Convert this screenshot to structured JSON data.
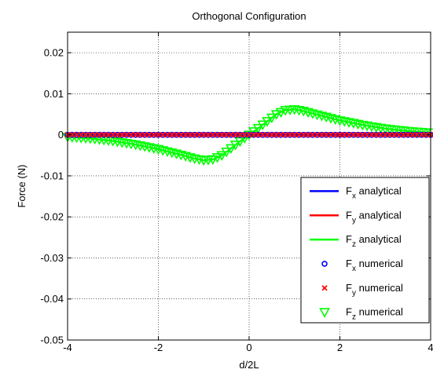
{
  "chart_data": {
    "type": "line",
    "title": "Orthogonal Configuration",
    "xlabel": "d/2L",
    "ylabel": "Force (N)",
    "xlim": [
      -4,
      4
    ],
    "ylim": [
      -0.05,
      0.025
    ],
    "x_ticks": [
      -4,
      -2,
      0,
      2,
      4
    ],
    "x_tick_labels": [
      "-4",
      "-2",
      "0",
      "2",
      "4"
    ],
    "y_ticks": [
      -0.05,
      -0.04,
      -0.03,
      -0.02,
      -0.01,
      0,
      0.01,
      0.02
    ],
    "y_tick_labels": [
      "-0.05",
      "-0.04",
      "-0.03",
      "-0.02",
      "-0.01",
      "0",
      "0.01",
      "0.02"
    ],
    "grid": true,
    "legend_position": "bottom-right",
    "colors": {
      "Fx": "#0000ff",
      "Fy": "#ff0000",
      "Fz": "#00ff00"
    },
    "x": [
      -4.0,
      -3.5,
      -3.0,
      -2.5,
      -2.0,
      -1.5,
      -1.2,
      -1.0,
      -0.8,
      -0.6,
      -0.4,
      -0.2,
      0.0,
      0.2,
      0.4,
      0.6,
      0.8,
      1.0,
      1.2,
      1.5,
      2.0,
      2.5,
      3.0,
      3.5,
      4.0
    ],
    "series": [
      {
        "name": "F",
        "sub": "x",
        "suffix": " analytical",
        "kind": "line",
        "color": "#0000ff",
        "values": [
          0,
          0,
          0,
          0,
          0,
          0,
          0,
          0,
          0,
          0,
          0,
          0,
          0,
          0,
          0,
          0,
          0,
          0,
          0,
          0,
          0,
          0,
          0,
          0,
          0
        ]
      },
      {
        "name": "F",
        "sub": "y",
        "suffix": " analytical",
        "kind": "line",
        "color": "#ff0000",
        "values": [
          0,
          0,
          0,
          0,
          0,
          0,
          0,
          0,
          0,
          0,
          0,
          0,
          0,
          0,
          0,
          0,
          0,
          0,
          0,
          0,
          0,
          0,
          0,
          0,
          0
        ]
      },
      {
        "name": "F",
        "sub": "z",
        "suffix": " analytical",
        "kind": "line",
        "color": "#00ff00",
        "values": [
          -0.0005,
          -0.0009,
          -0.0015,
          -0.0024,
          -0.0035,
          -0.0049,
          -0.0058,
          -0.0062,
          -0.006,
          -0.005,
          -0.0033,
          -0.0016,
          0.0,
          0.0016,
          0.0033,
          0.005,
          0.006,
          0.0062,
          0.0058,
          0.0049,
          0.0035,
          0.0024,
          0.0015,
          0.0009,
          0.0005
        ]
      },
      {
        "name": "F",
        "sub": "x",
        "suffix": " numerical",
        "kind": "circle",
        "color": "#0000ff",
        "values": [
          0,
          0,
          0,
          0,
          0,
          0,
          0,
          0,
          0,
          0,
          0,
          0,
          0,
          0,
          0,
          0,
          0,
          0,
          0,
          0,
          0,
          0,
          0,
          0,
          0
        ]
      },
      {
        "name": "F",
        "sub": "y",
        "suffix": " numerical",
        "kind": "x",
        "color": "#ff0000",
        "values": [
          0,
          0,
          0,
          0,
          0,
          0,
          0,
          0,
          0,
          0,
          0,
          0,
          0,
          0,
          0,
          0,
          0,
          0,
          0,
          0,
          0,
          0,
          0,
          0,
          0
        ]
      },
      {
        "name": "F",
        "sub": "z",
        "suffix": " numerical",
        "kind": "triangle",
        "color": "#00ff00",
        "values": [
          -0.0005,
          -0.0009,
          -0.0015,
          -0.0024,
          -0.0035,
          -0.0049,
          -0.0058,
          -0.0062,
          -0.006,
          -0.005,
          -0.0033,
          -0.0016,
          0.0,
          0.0016,
          0.0033,
          0.005,
          0.006,
          0.0062,
          0.0058,
          0.0049,
          0.0035,
          0.0024,
          0.0015,
          0.0009,
          0.0005
        ]
      }
    ]
  }
}
